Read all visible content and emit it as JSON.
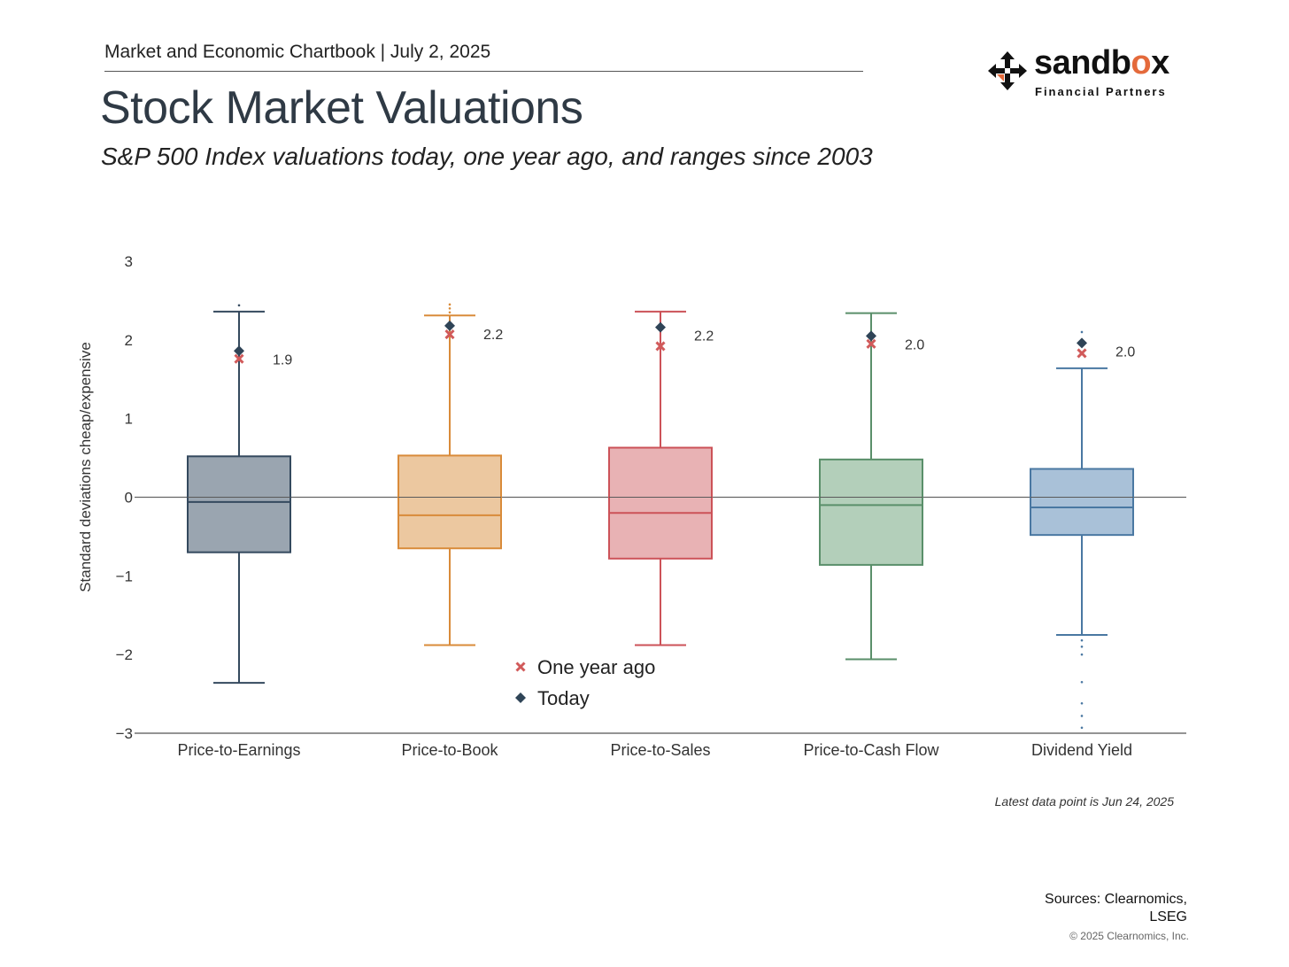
{
  "header": {
    "chartbook_line": "Market and Economic Chartbook | July 2, 2025",
    "title": "Stock Market Valuations",
    "subtitle": "S&P 500 Index valuations today, one year ago, and ranges since 2003"
  },
  "logo": {
    "word_main": "sandb",
    "word_accent": "o",
    "word_end": "x",
    "tagline": "Financial Partners",
    "icon": "arrows-cross-icon"
  },
  "chart_data": {
    "type": "box",
    "title": "",
    "ylabel": "Standard deviations cheap/expensive",
    "ylim": [
      -3,
      3
    ],
    "yticks": [
      3,
      2,
      1,
      0,
      -1,
      -2,
      -3
    ],
    "ytick_labels": [
      "3",
      "2",
      "1",
      "0",
      "−1",
      "−2",
      "−3"
    ],
    "categories": [
      "Price-to-Earnings",
      "Price-to-Book",
      "Price-to-Sales",
      "Price-to-Cash Flow",
      "Dividend Yield"
    ],
    "colors": {
      "Price-to-Earnings": {
        "fill": "#9aa5b0",
        "stroke": "#34495e"
      },
      "Price-to-Book": {
        "fill": "#ecc8a0",
        "stroke": "#d98b3a"
      },
      "Price-to-Sales": {
        "fill": "#e8b2b4",
        "stroke": "#cc5258"
      },
      "Price-to-Cash Flow": {
        "fill": "#b3cfba",
        "stroke": "#5a8f6a"
      },
      "Dividend Yield": {
        "fill": "#a9c1d8",
        "stroke": "#4a78a2"
      }
    },
    "boxes": [
      {
        "category": "Price-to-Earnings",
        "whisker_low": -2.36,
        "q1": -0.7,
        "median": -0.06,
        "q3": 0.52,
        "whisker_high": 2.36,
        "outliers": [
          2.44
        ],
        "today": 1.86,
        "one_year_ago": 1.76,
        "today_label": "1.9"
      },
      {
        "category": "Price-to-Book",
        "whisker_low": -1.88,
        "q1": -0.65,
        "median": -0.23,
        "q3": 0.53,
        "whisker_high": 2.31,
        "outliers": [
          2.35,
          2.4,
          2.45
        ],
        "today": 2.18,
        "one_year_ago": 2.07,
        "today_label": "2.2"
      },
      {
        "category": "Price-to-Sales",
        "whisker_low": -1.88,
        "q1": -0.78,
        "median": -0.2,
        "q3": 0.63,
        "whisker_high": 2.36,
        "outliers": [],
        "today": 2.16,
        "one_year_ago": 1.92,
        "today_label": "2.2"
      },
      {
        "category": "Price-to-Cash Flow",
        "whisker_low": -2.06,
        "q1": -0.86,
        "median": -0.1,
        "q3": 0.48,
        "whisker_high": 2.34,
        "outliers": [],
        "today": 2.05,
        "one_year_ago": 1.95,
        "today_label": "2.0"
      },
      {
        "category": "Dividend Yield",
        "whisker_low": -1.75,
        "q1": -0.48,
        "median": -0.13,
        "q3": 0.36,
        "whisker_high": 1.64,
        "outliers": [
          2.1,
          -1.82,
          -1.9,
          -2.0,
          -2.35,
          -2.62,
          -2.78,
          -2.93
        ],
        "today": 1.96,
        "one_year_ago": 1.83,
        "today_label": "2.0"
      }
    ],
    "legend": {
      "placement": "bottom-center",
      "entries": [
        {
          "label": "One year ago",
          "marker": "x",
          "color": "#d15a5a"
        },
        {
          "label": "Today",
          "marker": "diamond",
          "color": "#2f4457"
        }
      ]
    },
    "grid": false,
    "zero_line": true
  },
  "footer": {
    "latest_note": "Latest data point is Jun 24, 2025",
    "sources_line1": "Sources: Clearnomics,",
    "sources_line2": "LSEG",
    "copyright": "© 2025 Clearnomics, Inc."
  }
}
